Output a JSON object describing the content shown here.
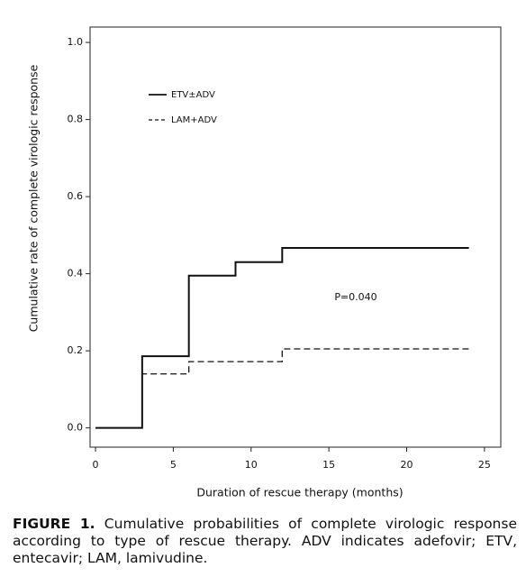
{
  "chart_data": {
    "type": "step",
    "xlabel": "Duration of rescue therapy (months)",
    "ylabel": "Cumulative rate of complete virologic response",
    "xlim": [
      -0.35,
      26.05
    ],
    "ylim": [
      -0.05,
      1.04
    ],
    "xticks": [
      0,
      5,
      10,
      15,
      20,
      25
    ],
    "yticks": [
      {
        "value": 0,
        "label": "0.0"
      },
      0.2,
      0.4,
      0.6,
      0.8,
      {
        "value": 1,
        "label": "1.0"
      }
    ],
    "series": [
      {
        "name": "ETV±ADV",
        "color": "#111111",
        "dash": "solid",
        "x": [
          0,
          3,
          6,
          9,
          12,
          24
        ],
        "values": [
          0,
          0.186,
          0.395,
          0.43,
          0.467,
          0.467
        ]
      },
      {
        "name": "LAM+ADV",
        "color": "#111111",
        "dash": "dashed",
        "x": [
          0,
          3,
          6,
          12,
          24
        ],
        "values": [
          0,
          0.14,
          0.172,
          0.205,
          0.2
        ]
      }
    ],
    "annotation": "P=0.040",
    "legend": "upper left"
  },
  "caption": {
    "label": "FIGURE 1.",
    "text": "Cumulative probabilities of complete virologic response according to type of rescue therapy. ADV indicates adefovir; ETV, entecavir; LAM, lamivudine."
  }
}
